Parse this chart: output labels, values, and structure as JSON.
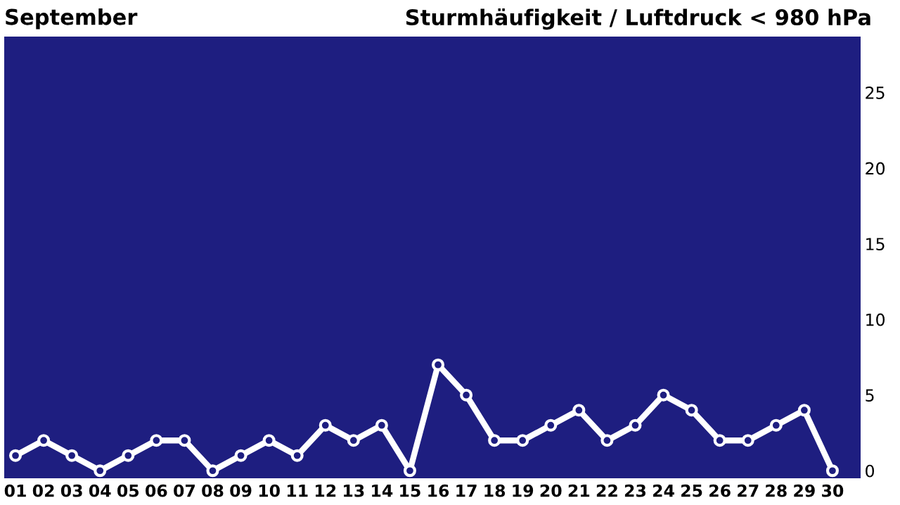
{
  "chart_data": {
    "type": "line",
    "title": "September",
    "subtitle": "Sturmhäufigkeit / Luftdruck < 980 hPa",
    "categories": [
      "01",
      "02",
      "03",
      "04",
      "05",
      "06",
      "07",
      "08",
      "09",
      "10",
      "11",
      "12",
      "13",
      "14",
      "15",
      "16",
      "17",
      "18",
      "19",
      "20",
      "21",
      "22",
      "23",
      "24",
      "25",
      "26",
      "27",
      "28",
      "29",
      "30"
    ],
    "series": [
      {
        "color": "#ffffff",
        "values": [
          1,
          2,
          1,
          0,
          1,
          2,
          2,
          0,
          1,
          2,
          1,
          3,
          2,
          3,
          0,
          7,
          5,
          2,
          2,
          3,
          4,
          2,
          3,
          5,
          4,
          2,
          2,
          3,
          4,
          0
        ]
      }
    ],
    "ylim": [
      -0.5,
      28.7
    ],
    "yticks": [
      0,
      5,
      10,
      15,
      20,
      25
    ],
    "grid": false,
    "legend": false,
    "marker": "circle",
    "line_style": "solid"
  }
}
